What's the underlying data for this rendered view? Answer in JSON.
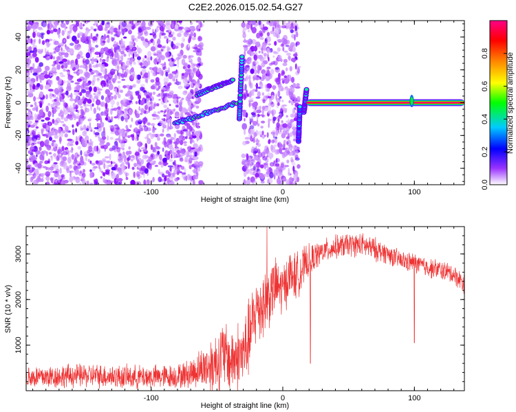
{
  "title": "C2E2.2026.015.02.54.G27",
  "colors": {
    "snr_line": "#ee3333",
    "frame": "#000000",
    "background": "#ffffff"
  },
  "chart_data": [
    {
      "type": "heatmap",
      "name": "spectrogram",
      "xlabel": "Height of straight line (km)",
      "ylabel": "Frequency (Hz)",
      "xlim": [
        -195,
        138
      ],
      "ylim": [
        -50,
        50
      ],
      "xticks": [
        -100,
        0,
        100
      ],
      "xtick_labels": [
        "-100",
        "0",
        "100"
      ],
      "yticks": [
        -40,
        -20,
        0,
        20,
        40
      ],
      "ytick_labels": [
        "-40",
        "-20",
        "0",
        "20",
        "40"
      ],
      "colorbar": {
        "label": "Normalized spectral amplitude",
        "range": [
          0,
          1
        ],
        "ticks": [
          0.0,
          0.2,
          0.4,
          0.6,
          0.8
        ],
        "tick_labels": [
          "0.0",
          "0.2",
          "0.4",
          "0.6",
          "0.8"
        ],
        "colors": [
          "#ffffff",
          "#8800ff",
          "#0000ff",
          "#00ffff",
          "#00ff00",
          "#ffff00",
          "#ff8800",
          "#ff0000",
          "#ff00aa"
        ]
      },
      "noise_regions": [
        {
          "x": [
            -195,
            -62
          ],
          "f": [
            -50,
            50
          ],
          "amp": 0.12
        },
        {
          "x": [
            -30,
            12
          ],
          "f": [
            -50,
            50
          ],
          "amp": 0.12
        }
      ],
      "features": [
        {
          "kind": "chirp",
          "x": [
            -82,
            -35
          ],
          "f": [
            -13,
            0
          ],
          "amp": 0.35
        },
        {
          "kind": "chirp",
          "x": [
            -65,
            -38
          ],
          "f": [
            5,
            14
          ],
          "amp": 0.35
        },
        {
          "kind": "segment",
          "x": [
            -33,
            -31
          ],
          "f": [
            -10,
            28
          ],
          "amp": 0.3
        },
        {
          "kind": "segment",
          "x": [
            12,
            13
          ],
          "f": [
            -23,
            -2
          ],
          "amp": 0.25
        },
        {
          "kind": "segment",
          "x": [
            16,
            18
          ],
          "f": [
            -6,
            8
          ],
          "amp": 0.3
        },
        {
          "kind": "tone",
          "x": [
            18,
            138
          ],
          "f": 0,
          "amp": 0.98
        },
        {
          "kind": "blob",
          "x": 98,
          "f": 1,
          "amp": 0.5
        }
      ]
    },
    {
      "type": "line",
      "name": "snr",
      "xlabel": "Height of straight line (km)",
      "ylabel": "SNR (10 * v/v)",
      "xlim": [
        -195,
        138
      ],
      "ylim": [
        0,
        3600
      ],
      "xticks": [
        -100,
        0,
        100
      ],
      "xtick_labels": [
        "-100",
        "0",
        "100"
      ],
      "yticks": [
        1000,
        2000,
        3000
      ],
      "ytick_labels": [
        "1000",
        "2000",
        "3000"
      ],
      "x": [
        -195,
        -180,
        -160,
        -140,
        -120,
        -100,
        -80,
        -70,
        -62,
        -55,
        -50,
        -45,
        -40,
        -35,
        -30,
        -25,
        -20,
        -15,
        -10,
        -5,
        0,
        5,
        10,
        15,
        20,
        30,
        40,
        50,
        60,
        70,
        80,
        90,
        100,
        110,
        120,
        130,
        138
      ],
      "values": [
        300,
        300,
        330,
        330,
        300,
        300,
        320,
        380,
        500,
        550,
        650,
        800,
        650,
        750,
        800,
        1200,
        1800,
        1900,
        2100,
        2300,
        2200,
        2550,
        2500,
        2700,
        2850,
        3050,
        3150,
        3200,
        3200,
        3100,
        3000,
        2850,
        2800,
        2700,
        2650,
        2550,
        2350
      ],
      "noise": [
        300,
        300,
        300,
        300,
        300,
        300,
        300,
        380,
        500,
        700,
        800,
        900,
        800,
        900,
        900,
        1000,
        900,
        900,
        800,
        700,
        700,
        600,
        600,
        500,
        400,
        300,
        300,
        300,
        300,
        300,
        250,
        250,
        250,
        250,
        250,
        250,
        250
      ],
      "spikes": [
        {
          "x": -12,
          "value": 3650
        },
        {
          "x": -7,
          "value": 2700
        },
        {
          "x": 14,
          "value": 2250
        },
        {
          "x": 21,
          "value": 600
        },
        {
          "x": 100,
          "value": 1050
        }
      ]
    }
  ]
}
